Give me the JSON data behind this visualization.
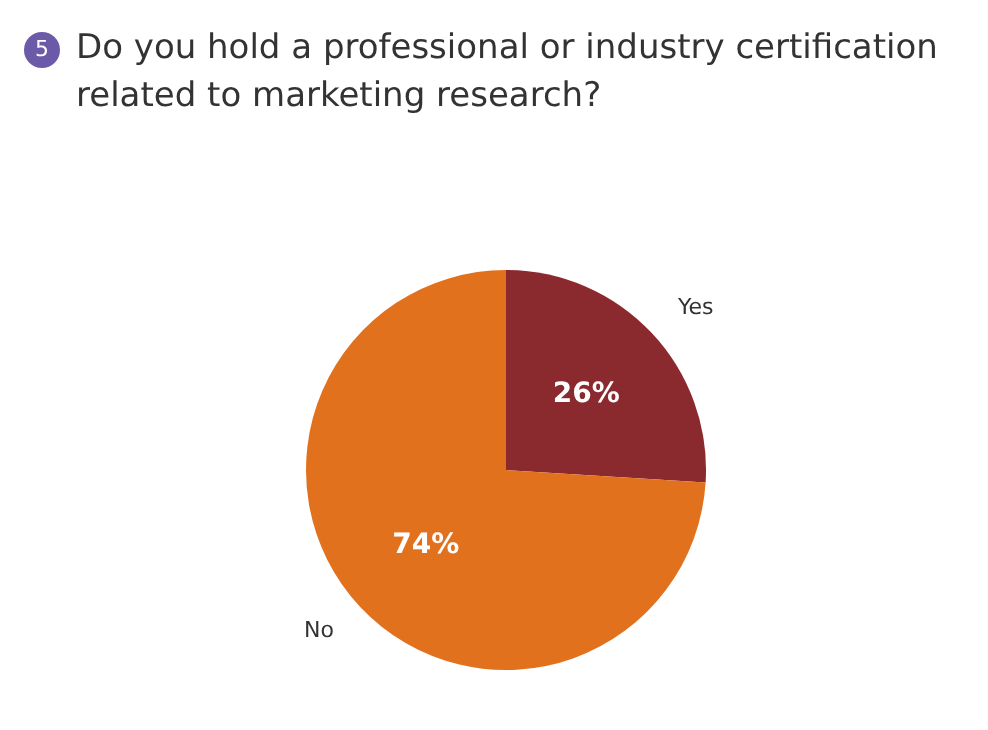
{
  "chart_data": {
    "type": "pie",
    "title": "Do you hold a professional or industry certification related to marketing research?",
    "annotations": [
      "5"
    ],
    "categories": [
      "Yes",
      "No"
    ],
    "values": [
      26,
      74
    ],
    "colors": [
      "#8b2a2e",
      "#e2711d"
    ],
    "value_labels": [
      "26%",
      "74%"
    ],
    "legend": false
  }
}
